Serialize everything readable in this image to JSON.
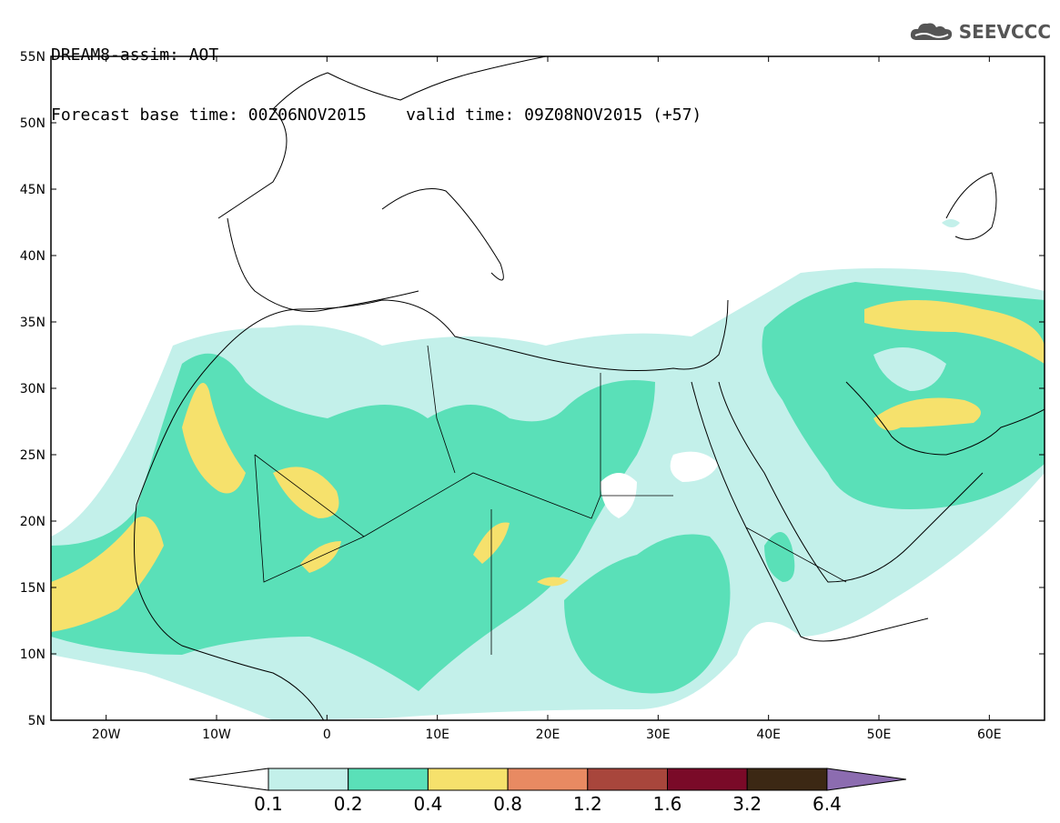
{
  "header": {
    "line1": "DREAM8-assim: AOT",
    "base_label": "Forecast base time: 00Z06NOV2015",
    "valid_label": "valid time: 09Z08NOV2015 (+57)"
  },
  "logo": {
    "text": "SEEVCCC",
    "icon": "cloud-icon"
  },
  "map": {
    "lat_labels": [
      "55N",
      "50N",
      "45N",
      "40N",
      "35N",
      "30N",
      "25N",
      "20N",
      "15N",
      "10N",
      "5N"
    ],
    "lon_labels": [
      "20W",
      "10W",
      "0",
      "10E",
      "20E",
      "30E",
      "40E",
      "50E",
      "60E"
    ],
    "lon_range": [
      -25,
      65
    ],
    "lat_range": [
      5,
      55
    ]
  },
  "legend": {
    "labels": [
      "0.1",
      "0.2",
      "0.4",
      "0.8",
      "1.2",
      "1.6",
      "3.2",
      "6.4"
    ],
    "colors": [
      "#ffffff",
      "#c3f0ea",
      "#5ae0b8",
      "#f6e16c",
      "#e88a62",
      "#a8463c",
      "#7a0a28",
      "#3c2814",
      "#8c6cb0"
    ]
  }
}
